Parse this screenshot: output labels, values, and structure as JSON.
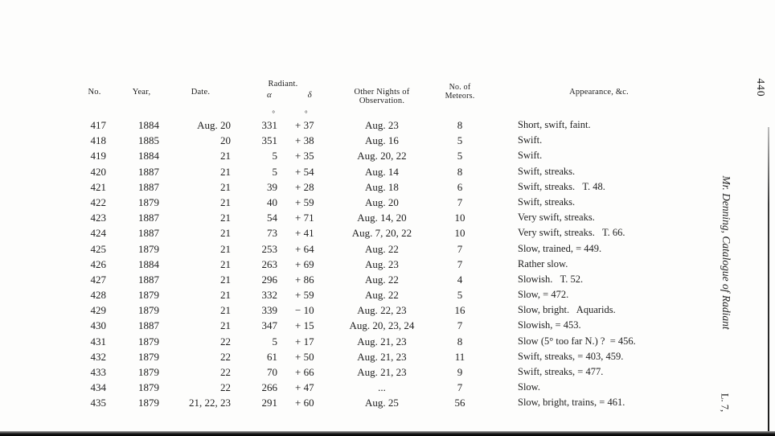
{
  "page": {
    "page_number": "440",
    "margin_title": "Mr. Denning, Catalogue of Radiant",
    "signature_mark": "L. 7,"
  },
  "table": {
    "headers": {
      "no": "No.",
      "year": "Year,",
      "date": "Date.",
      "radiant": "Radiant.",
      "alpha": "α",
      "delta": "δ",
      "nights": "Other Nights of Observation.",
      "meteors_line1": "No. of",
      "meteors_line2": "Meteors.",
      "appearance": "Appearance, &c."
    },
    "rows": [
      {
        "no": "417",
        "year": "1884",
        "date": "Aug. 20",
        "alpha": "331",
        "delta": "+ 37",
        "nights": "Aug. 23",
        "meteors": "8",
        "appearance": "Short, swift, faint.",
        "degree_marks": true
      },
      {
        "no": "418",
        "year": "1885",
        "date": "20",
        "alpha": "351",
        "delta": "+ 38",
        "nights": "Aug. 16",
        "meteors": "5",
        "appearance": "Swift."
      },
      {
        "no": "419",
        "year": "1884",
        "date": "21",
        "alpha": "5",
        "delta": "+ 35",
        "nights": "Aug. 20, 22",
        "meteors": "5",
        "appearance": "Swift."
      },
      {
        "no": "420",
        "year": "1887",
        "date": "21",
        "alpha": "5",
        "delta": "+ 54",
        "nights": "Aug. 14",
        "meteors": "8",
        "appearance": "Swift, streaks."
      },
      {
        "no": "421",
        "year": "1887",
        "date": "21",
        "alpha": "39",
        "delta": "+ 28",
        "nights": "Aug. 18",
        "meteors": "6",
        "appearance": "Swift, streaks.   T. 48."
      },
      {
        "no": "422",
        "year": "1879",
        "date": "21",
        "alpha": "40",
        "delta": "+ 59",
        "nights": "Aug. 20",
        "meteors": "7",
        "appearance": "Swift, streaks."
      },
      {
        "no": "423",
        "year": "1887",
        "date": "21",
        "alpha": "54",
        "delta": "+ 71",
        "nights": "Aug. 14, 20",
        "meteors": "10",
        "appearance": "Very swift, streaks."
      },
      {
        "no": "424",
        "year": "1887",
        "date": "21",
        "alpha": "73",
        "delta": "+ 41",
        "nights": "Aug. 7, 20, 22",
        "meteors": "10",
        "appearance": "Very swift, streaks.   T. 66."
      },
      {
        "no": "425",
        "year": "1879",
        "date": "21",
        "alpha": "253",
        "delta": "+ 64",
        "nights": "Aug. 22",
        "meteors": "7",
        "appearance": "Slow, trained, = 449."
      },
      {
        "no": "426",
        "year": "1884",
        "date": "21",
        "alpha": "263",
        "delta": "+ 69",
        "nights": "Aug. 23",
        "meteors": "7",
        "appearance": "Rather slow."
      },
      {
        "no": "427",
        "year": "1887",
        "date": "21",
        "alpha": "296",
        "delta": "+ 86",
        "nights": "Aug. 22",
        "meteors": "4",
        "appearance": "Slowish.   T. 52."
      },
      {
        "no": "428",
        "year": "1879",
        "date": "21",
        "alpha": "332",
        "delta": "+ 59",
        "nights": "Aug. 22",
        "meteors": "5",
        "appearance": "Slow, = 472."
      },
      {
        "no": "429",
        "year": "1879",
        "date": "21",
        "alpha": "339",
        "delta": "− 10",
        "nights": "Aug. 22, 23",
        "meteors": "16",
        "appearance": "Slow, bright.   Aquarids."
      },
      {
        "no": "430",
        "year": "1887",
        "date": "21",
        "alpha": "347",
        "delta": "+ 15",
        "nights": "Aug. 20, 23, 24",
        "meteors": "7",
        "appearance": "Slowish, = 453."
      },
      {
        "no": "431",
        "year": "1879",
        "date": "22",
        "alpha": "5",
        "delta": "+ 17",
        "nights": "Aug. 21, 23",
        "meteors": "8",
        "appearance": "Slow (5° too far N.) ?  = 456."
      },
      {
        "no": "432",
        "year": "1879",
        "date": "22",
        "alpha": "61",
        "delta": "+ 50",
        "nights": "Aug. 21, 23",
        "meteors": "11",
        "appearance": "Swift, streaks, = 403, 459."
      },
      {
        "no": "433",
        "year": "1879",
        "date": "22",
        "alpha": "70",
        "delta": "+ 66",
        "nights": "Aug. 21, 23",
        "meteors": "9",
        "appearance": "Swift, streaks, = 477."
      },
      {
        "no": "434",
        "year": "1879",
        "date": "22",
        "alpha": "266",
        "delta": "+ 47",
        "nights": "...",
        "meteors": "7",
        "appearance": "Slow."
      },
      {
        "no": "435",
        "year": "1879",
        "date": "21, 22, 23",
        "alpha": "291",
        "delta": "+ 60",
        "nights": "Aug. 25",
        "meteors": "56",
        "appearance": "Slow, bright, trains, = 461."
      }
    ]
  },
  "colors": {
    "paper": "#fdfdfc",
    "ink": "#1e1e1e",
    "scan_edge": "#1a1a1a"
  }
}
